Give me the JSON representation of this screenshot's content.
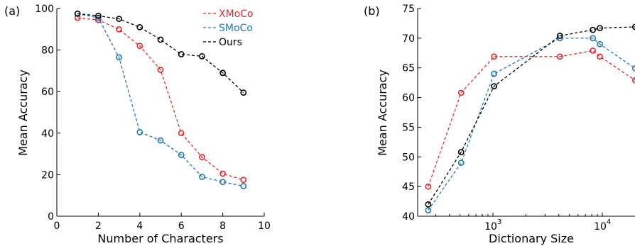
{
  "chart_data": [
    {
      "type": "line",
      "panel_label": "(a)",
      "xlabel": "Number of Characters",
      "ylabel": "Mean Accuracy",
      "xlim": [
        0,
        10
      ],
      "ylim": [
        0,
        100
      ],
      "x_ticks": [
        0,
        2,
        4,
        6,
        8,
        10
      ],
      "x_tick_labels": [
        "0",
        "2",
        "4",
        "6",
        "8",
        "10"
      ],
      "y_ticks": [
        0,
        20,
        40,
        60,
        80,
        100
      ],
      "y_tick_labels": [
        "0",
        "20",
        "40",
        "60",
        "80",
        "100"
      ],
      "legend": "top-right",
      "grid": false,
      "x": [
        1,
        2,
        3,
        4,
        5,
        6,
        7,
        8,
        9
      ],
      "series": [
        {
          "name": "XMoCo",
          "color": "#e8262a",
          "values": [
            95.5,
            94.5,
            90,
            82,
            70.5,
            40,
            28.5,
            20.5,
            17.5
          ]
        },
        {
          "name": "SMoCo",
          "color": "#1f77b4",
          "values": [
            97.5,
            95.5,
            76.5,
            40.5,
            36.5,
            29.5,
            19,
            16.5,
            14.5
          ]
        },
        {
          "name": "Ours",
          "color": "#000000",
          "values": [
            97.5,
            96.5,
            95,
            91,
            85,
            78,
            77,
            69,
            59.5
          ]
        }
      ]
    },
    {
      "type": "line",
      "panel_label": "(b)",
      "xlabel": "Dictionary Size",
      "ylabel": "Mean Accuracy",
      "x_scale": "log",
      "ylim": [
        40,
        75
      ],
      "x_ticks": [
        1000,
        10000
      ],
      "x_tick_labels": [
        "10",
        "10"
      ],
      "x_tick_exponents": [
        "3",
        "4"
      ],
      "y_ticks": [
        40,
        45,
        50,
        55,
        60,
        65,
        70,
        75
      ],
      "y_tick_labels": [
        "40",
        "45",
        "50",
        "55",
        "60",
        "65",
        "70",
        "75"
      ],
      "grid": false,
      "x": [
        256,
        512,
        1024,
        4096,
        8192,
        9500,
        20000
      ],
      "series": [
        {
          "name": "XMoCo",
          "color": "#e8262a",
          "values": [
            45,
            60.8,
            66.9,
            66.9,
            67.9,
            66.9,
            62.9
          ]
        },
        {
          "name": "SMoCo",
          "color": "#1f77b4",
          "values": [
            41,
            49,
            64,
            70,
            70,
            69,
            64.9
          ]
        },
        {
          "name": "Ours",
          "color": "#000000",
          "values": [
            42,
            50.8,
            61.9,
            70.4,
            71.4,
            71.7,
            71.9
          ]
        }
      ]
    }
  ]
}
